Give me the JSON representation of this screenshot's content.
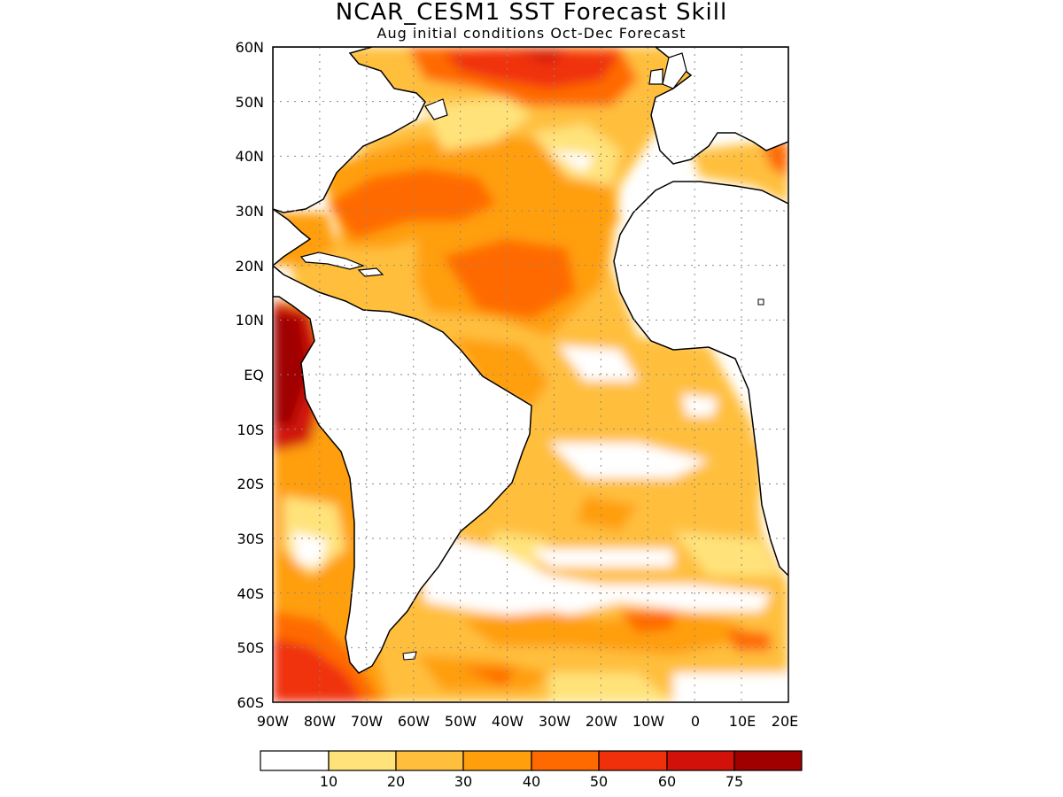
{
  "title": "NCAR_CESM1 SST Forecast Skill",
  "subtitle": "Aug initial conditions  Oct-Dec Forecast",
  "map": {
    "region": "Atlantic Ocean",
    "lon_range": [
      -90,
      20
    ],
    "lat_range": [
      -60,
      60
    ],
    "grid": true,
    "lat_labels": [
      "60N",
      "50N",
      "40N",
      "30N",
      "20N",
      "10N",
      "EQ",
      "10S",
      "20S",
      "30S",
      "40S",
      "50S",
      "60S"
    ],
    "lon_labels": [
      "90W",
      "80W",
      "70W",
      "60W",
      "50W",
      "40W",
      "30W",
      "20W",
      "10W",
      "0",
      "10E",
      "20E"
    ]
  },
  "colorbar": {
    "labels": [
      "10",
      "20",
      "30",
      "40",
      "50",
      "60",
      "75"
    ],
    "colors": [
      "#ffffff",
      "#ffe37a",
      "#ffbf3c",
      "#ff9f0c",
      "#ff6a00",
      "#f0300a",
      "#d2120a",
      "#a00000"
    ]
  }
}
